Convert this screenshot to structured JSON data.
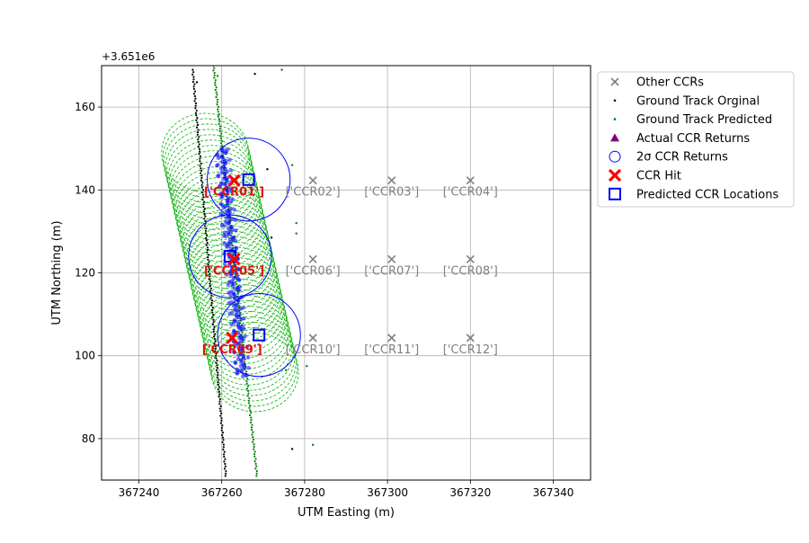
{
  "chart_data": {
    "type": "scatter",
    "xlabel": "UTM Easting (m)",
    "ylabel": "UTM Northing (m)",
    "offset_text": "+3.651e6",
    "y_offset": 3651000,
    "xlim": [
      367231,
      367349
    ],
    "ylim": [
      3651070,
      3651170
    ],
    "xticks": [
      367240,
      367260,
      367280,
      367300,
      367320,
      367340
    ],
    "yticks": [
      80,
      100,
      120,
      140,
      160
    ],
    "grid": true,
    "legend_position": "outside-right",
    "legend": [
      {
        "key": "other",
        "label": "Other CCRs",
        "marker": "x",
        "color": "#808080"
      },
      {
        "key": "orig",
        "label": "Ground Track Orginal",
        "marker": "dot",
        "color": "#000000"
      },
      {
        "key": "pred",
        "label": "Ground Track Predicted",
        "marker": "dot",
        "color": "#008000"
      },
      {
        "key": "actual",
        "label": "Actual CCR Returns",
        "marker": "triangle",
        "color": "#800080"
      },
      {
        "key": "sigma",
        "label": "2σ CCR Returns",
        "marker": "circle",
        "color": "#0000ff"
      },
      {
        "key": "hit",
        "label": "CCR Hit",
        "marker": "X",
        "color": "#ff0000"
      },
      {
        "key": "predloc",
        "label": "Predicted CCR Locations",
        "marker": "square",
        "color": "#0000ff"
      }
    ],
    "ccrs": [
      {
        "label": "['CCR01']",
        "x": 367263,
        "y": 3651142.3,
        "hit": true
      },
      {
        "label": "['CCR02']",
        "x": 367282,
        "y": 3651142.3,
        "hit": false
      },
      {
        "label": "['CCR03']",
        "x": 367301,
        "y": 3651142.3,
        "hit": false
      },
      {
        "label": "['CCR04']",
        "x": 367320,
        "y": 3651142.3,
        "hit": false
      },
      {
        "label": "['CCR05']",
        "x": 367263,
        "y": 3651123.3,
        "hit": true
      },
      {
        "label": "['CCR06']",
        "x": 367282,
        "y": 3651123.3,
        "hit": false
      },
      {
        "label": "['CCR07']",
        "x": 367301,
        "y": 3651123.3,
        "hit": false
      },
      {
        "label": "['CCR08']",
        "x": 367320,
        "y": 3651123.3,
        "hit": false
      },
      {
        "label": "['CCR09']",
        "x": 367262.5,
        "y": 3651104.3,
        "hit": true
      },
      {
        "label": "['CCR10']",
        "x": 367282,
        "y": 3651104.3,
        "hit": false
      },
      {
        "label": "['CCR11']",
        "x": 367301,
        "y": 3651104.3,
        "hit": false
      },
      {
        "label": "['CCR12']",
        "x": 367320,
        "y": 3651104.3,
        "hit": false
      }
    ],
    "predicted_ccr_locations": [
      {
        "x": 367266.5,
        "y": 3651142.5
      },
      {
        "x": 367262,
        "y": 3651124
      },
      {
        "x": 367269,
        "y": 3651105
      }
    ],
    "sigma_circles": [
      {
        "x": 367266.5,
        "y": 3651142.5,
        "r": 10
      },
      {
        "x": 367262,
        "y": 3651124,
        "r": 10
      },
      {
        "x": 367269,
        "y": 3651105,
        "r": 10
      }
    ],
    "ground_track_original": {
      "start": {
        "x": 367253,
        "y": 3651169
      },
      "end": {
        "x": 367261,
        "y": 3651071
      }
    },
    "ground_track_predicted": {
      "start": {
        "x": 367258,
        "y": 3651170
      },
      "end": {
        "x": 367268.5,
        "y": 3651071
      }
    },
    "actual_returns_band": {
      "start": {
        "x": 367260,
        "y": 3651150
      },
      "end": {
        "x": 367265,
        "y": 3651095
      }
    },
    "footprint_band": {
      "start": {
        "x": 367256,
        "y": 3651149
      },
      "end": {
        "x": 367268,
        "y": 3651096
      },
      "radius_x": 10.5,
      "radius_y": 9.5
    },
    "scattered_points": {
      "black": [
        {
          "x": 367268,
          "y": 3651168
        },
        {
          "x": 367271,
          "y": 3651145
        },
        {
          "x": 367272,
          "y": 3651128.5
        },
        {
          "x": 367277,
          "y": 3651077.5
        },
        {
          "x": 367254,
          "y": 3651166
        }
      ],
      "green": [
        {
          "x": 367274.5,
          "y": 3651169
        },
        {
          "x": 367277,
          "y": 3651146
        },
        {
          "x": 367278,
          "y": 3651132
        },
        {
          "x": 367278,
          "y": 3651129.5
        },
        {
          "x": 367280.5,
          "y": 3651097.5
        },
        {
          "x": 367282,
          "y": 3651078.5
        },
        {
          "x": 367275.5,
          "y": 3651096.5
        },
        {
          "x": 367259,
          "y": 3651167.5
        }
      ]
    }
  }
}
